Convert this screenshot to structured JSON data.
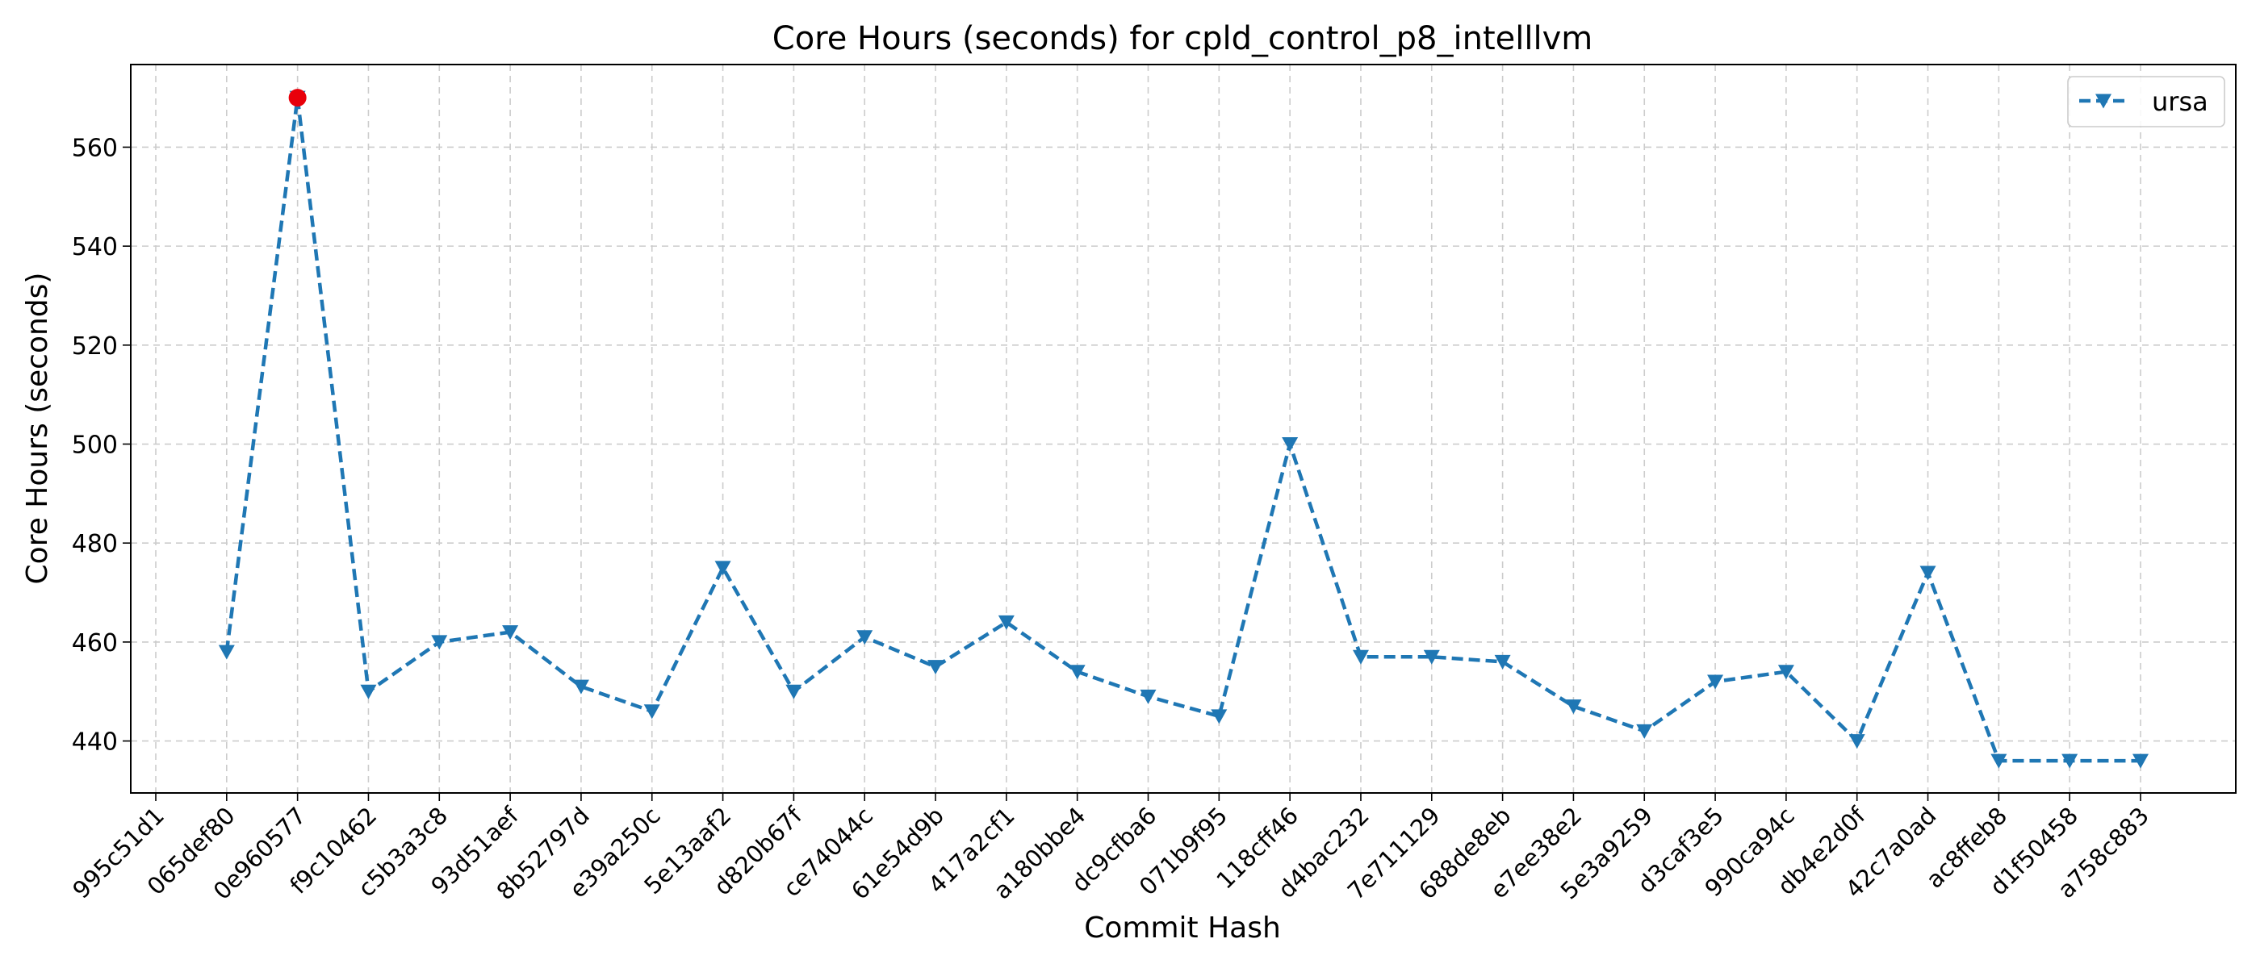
{
  "chart_data": {
    "type": "line",
    "title": "Core Hours (seconds) for cpld_control_p8_intelllvm",
    "xlabel": "Commit Hash",
    "ylabel": "Core Hours (seconds)",
    "categories": [
      "995c51d1",
      "065def80",
      "0e960577",
      "f9c10462",
      "c5b3a3c8",
      "93d51aef",
      "8b52797d",
      "e39a250c",
      "5e13aaf2",
      "d820b67f",
      "ce74044c",
      "61e54d9b",
      "417a2cf1",
      "a180bbe4",
      "dc9cfba6",
      "071b9f95",
      "118cff46",
      "d4bac232",
      "7e711129",
      "688de8eb",
      "e7ee38e2",
      "5e3a9259",
      "d3caf3e5",
      "990ca94c",
      "db4e2d0f",
      "42c7a0ad",
      "ac8ffeb8",
      "d1f50458",
      "a758c883"
    ],
    "yticks": [
      440,
      460,
      480,
      500,
      520,
      540,
      560
    ],
    "ylim": [
      429.5,
      576.7
    ],
    "grid": true,
    "legend_position": "top-right",
    "series": [
      {
        "name": "ursa",
        "color": "#1f77b4",
        "marker": "triangle-down",
        "line_style": "dashed",
        "values": [
          null,
          458,
          570,
          450,
          460,
          462,
          451,
          446,
          475,
          450,
          461,
          455,
          464,
          454,
          449,
          445,
          500,
          457,
          457,
          456,
          447,
          442,
          452,
          454,
          440,
          474,
          436,
          436,
          436
        ]
      }
    ],
    "highlight": {
      "category": "0e960577",
      "value": 570,
      "color": "#e8000b"
    }
  }
}
